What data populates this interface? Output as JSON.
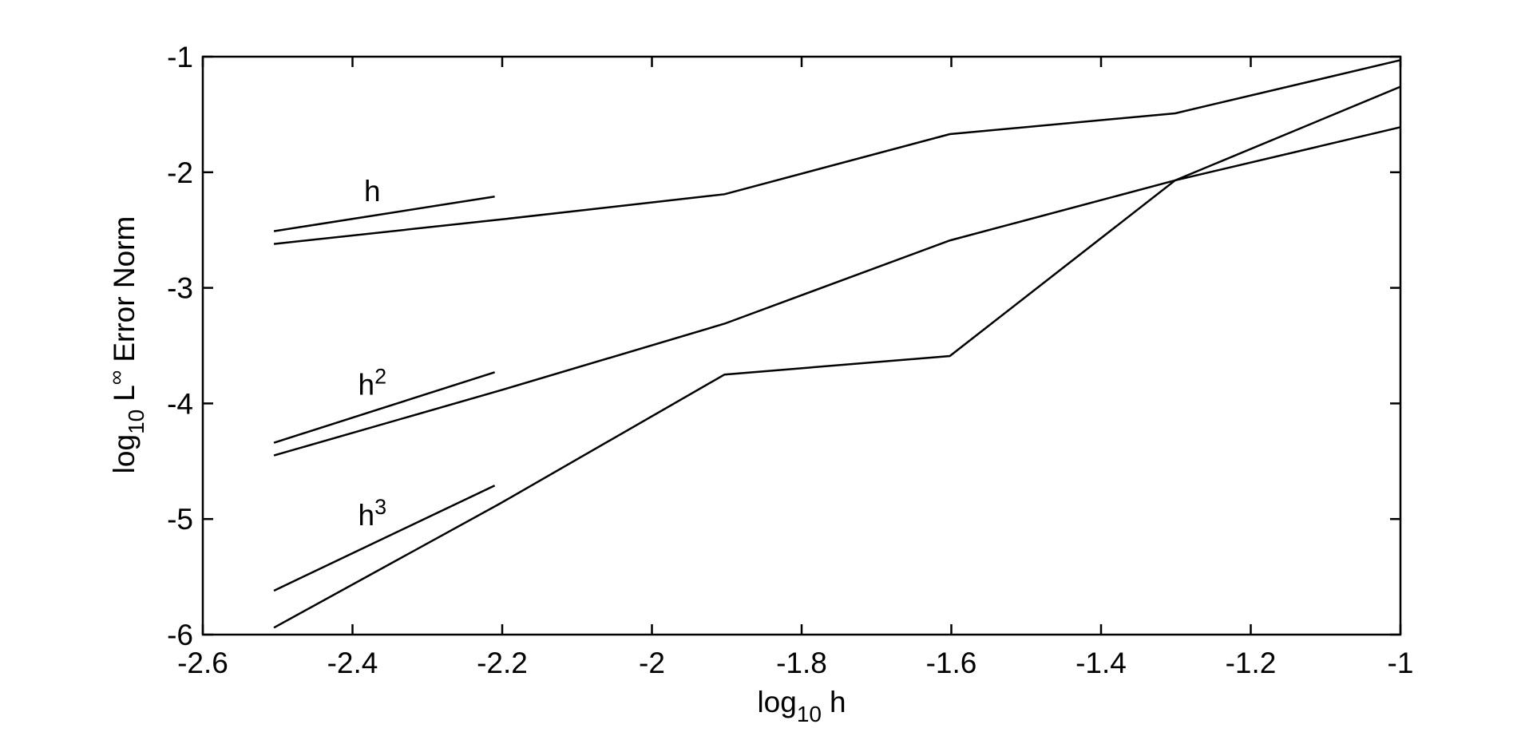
{
  "chart_data": {
    "type": "line",
    "xlabel": [
      "log",
      "10",
      "h"
    ],
    "ylabel": [
      "log",
      "10",
      "L",
      "∞",
      "Error Norm"
    ],
    "xlim": [
      -2.6,
      -1
    ],
    "ylim": [
      -6,
      -1
    ],
    "xticks": [
      -2.6,
      -2.4,
      -2.2,
      -2,
      -1.8,
      -1.6,
      -1.4,
      -1.2,
      -1
    ],
    "yticks": [
      -6,
      -5,
      -4,
      -3,
      -2,
      -1
    ],
    "color": "#000000",
    "series": [
      {
        "x": [
          -2.505,
          -2.204,
          -1.903,
          -1.602,
          -1.301,
          -1.0
        ],
        "values": [
          -2.62,
          -2.41,
          -2.19,
          -1.67,
          -1.49,
          -1.03
        ]
      },
      {
        "x": [
          -2.505,
          -2.204,
          -1.903,
          -1.602,
          -1.301,
          -1.0
        ],
        "values": [
          -4.45,
          -3.89,
          -3.31,
          -2.59,
          -2.07,
          -1.61
        ]
      },
      {
        "x": [
          -2.505,
          -2.204,
          -1.903,
          -1.602,
          -1.301,
          -1.0
        ],
        "values": [
          -5.94,
          -4.87,
          -3.75,
          -3.59,
          -2.07,
          -1.26
        ]
      }
    ],
    "reference_lines": [
      {
        "text": "h",
        "x": [
          -2.505,
          -2.21
        ],
        "values": [
          -2.51,
          -2.21
        ]
      },
      {
        "text": "h",
        "superscript": "2",
        "x": [
          -2.505,
          -2.21
        ],
        "values": [
          -4.34,
          -3.73
        ]
      },
      {
        "text": "h",
        "superscript": "3",
        "x": [
          -2.505,
          -2.21
        ],
        "values": [
          -5.62,
          -4.71
        ]
      }
    ]
  }
}
